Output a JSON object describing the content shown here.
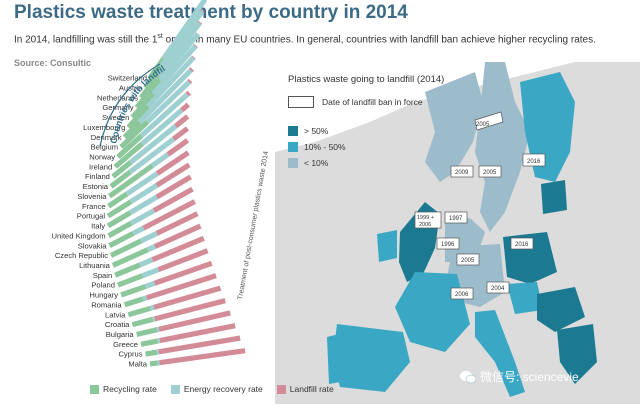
{
  "header": {
    "title": "Plastics waste treatment by country in 2014",
    "subtitle_pre": "In 2014, landfilling was still the 1",
    "subtitle_sup": "st",
    "subtitle_post": " option in many EU countries. In general, countries with landfill ban achieve higher recycling rates.",
    "source": "Source: Consultic"
  },
  "fan": {
    "ban_group_label": "Countries with landfill ban",
    "axis_label": "Treatment of post-consumer plastics waste 2014"
  },
  "chart_data": {
    "type": "bar",
    "orientation": "horizontal-stacked-fan",
    "categories": [
      "Switzerland",
      "Austria",
      "Netherlands",
      "Germany",
      "Sweden",
      "Luxembourg",
      "Denmark",
      "Belgium",
      "Norway",
      "Ireland",
      "Finland",
      "Estonia",
      "Slovenia",
      "France",
      "Portugal",
      "Italy",
      "United Kingdom",
      "Slovakia",
      "Czech Republic",
      "Lithuania",
      "Spain",
      "Poland",
      "Hungary",
      "Romania",
      "Latvia",
      "Croatia",
      "Bulgaria",
      "Greece",
      "Cyprus",
      "Malta"
    ],
    "series": [
      {
        "name": "Recycling rate",
        "color": "#8bc79a",
        "values": [
          25,
          27,
          30,
          38,
          33,
          30,
          22,
          38,
          33,
          37,
          24,
          25,
          55,
          23,
          28,
          27,
          27,
          28,
          35,
          40,
          28,
          27,
          27,
          20,
          24,
          22,
          22,
          18,
          12,
          8
        ]
      },
      {
        "name": "Energy recovery rate",
        "color": "#9ecfd1",
        "values": [
          75,
          72,
          69,
          62,
          66,
          69,
          76,
          60,
          64,
          54,
          60,
          57,
          20,
          38,
          32,
          32,
          27,
          12,
          18,
          8,
          14,
          18,
          10,
          4,
          4,
          2,
          2,
          2,
          2,
          2
        ]
      },
      {
        "name": "Landfill rate",
        "color": "#d38c97",
        "values": [
          0,
          1,
          1,
          0,
          1,
          1,
          2,
          2,
          3,
          9,
          16,
          18,
          25,
          39,
          40,
          41,
          46,
          60,
          47,
          52,
          58,
          55,
          63,
          76,
          72,
          76,
          76,
          80,
          86,
          90
        ]
      }
    ],
    "ban_group_count": 9
  },
  "map": {
    "title": "Plastics waste going to landfill (2014)",
    "legend_box_label": "Date of landfill ban in force",
    "legend": [
      {
        "label": "> 50%",
        "color": "#1b7a92"
      },
      {
        "label": "10% - 50%",
        "color": "#3aa7c4"
      },
      {
        "label": "< 10%",
        "color": "#9cbccc"
      }
    ],
    "ban_dates": [
      "2009",
      "2005",
      "2016",
      "1999 + 2006",
      "1997",
      "1996",
      "2005",
      "2016",
      "2006",
      "2004"
    ]
  },
  "bottom_legend": {
    "recycling": "Recycling rate",
    "energy": "Energy recovery rate",
    "landfill": "Landfill rate"
  },
  "watermark": "微信号: sciencevie"
}
